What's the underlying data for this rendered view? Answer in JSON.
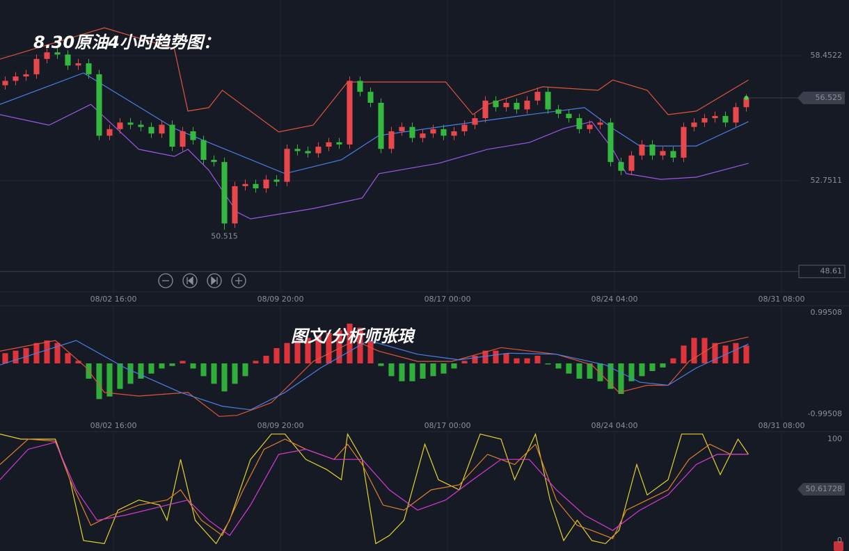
{
  "watermark": "图文/分析师张琅",
  "chart_data": [
    {
      "type": "candlestick",
      "title": "8.30原油4小时趋势图：",
      "xlim": [
        -0.5,
        76.17
      ],
      "xticks": [
        {
          "value": 10.37,
          "label": "08/02 16:00"
        },
        {
          "value": 26.37,
          "label": "08/09 20:00"
        },
        {
          "value": 42.37,
          "label": "08/17 00:00"
        },
        {
          "value": 58.37,
          "label": "08/24 04:00"
        },
        {
          "value": 74.37,
          "label": "08/31 08:00"
        }
      ],
      "ylim": [
        47.683,
        60.986
      ],
      "yticks": [
        58.4522,
        52.7511
      ],
      "reference_line": 48.61,
      "up_color": "#e8474c",
      "down_color": "#35b83f",
      "open": [
        57.1,
        57.3,
        57.5,
        57.6,
        58.3,
        58.6,
        58.5,
        58.0,
        58.1,
        57.6,
        54.8,
        55.1,
        55.4,
        55.3,
        55.2,
        54.9,
        55.3,
        54.3,
        55.0,
        54.6,
        53.7,
        53.6,
        50.8,
        52.5,
        52.6,
        52.4,
        52.8,
        52.7,
        54.2,
        54.1,
        54.0,
        54.3,
        54.5,
        54.4,
        57.3,
        56.8,
        56.3,
        54.2,
        55.0,
        55.2,
        54.7,
        54.9,
        55.1,
        54.8,
        55.0,
        55.3,
        55.6,
        56.4,
        56.1,
        56.3,
        56.0,
        56.4,
        56.8,
        56.0,
        55.8,
        55.6,
        55.1,
        55.3,
        55.4,
        53.6,
        53.2,
        53.9,
        54.4,
        53.9,
        54.1,
        53.8,
        55.2,
        55.4,
        55.6,
        55.7,
        55.4,
        56.1
      ],
      "high": [
        57.5,
        57.7,
        57.8,
        58.5,
        58.8,
        58.8,
        58.7,
        58.3,
        58.3,
        57.8,
        55.3,
        55.6,
        55.6,
        55.5,
        55.4,
        55.5,
        55.5,
        55.2,
        55.2,
        54.8,
        53.9,
        53.8,
        52.7,
        52.8,
        52.8,
        53.0,
        53.0,
        54.4,
        54.4,
        54.3,
        54.5,
        54.7,
        54.7,
        57.5,
        57.5,
        57.0,
        56.5,
        55.2,
        55.4,
        55.4,
        55.1,
        55.3,
        55.3,
        55.2,
        55.5,
        55.8,
        56.6,
        56.6,
        56.5,
        56.5,
        56.6,
        57.0,
        57.0,
        56.2,
        56.0,
        55.8,
        55.5,
        55.6,
        55.6,
        53.8,
        54.1,
        54.6,
        54.6,
        54.3,
        54.3,
        55.4,
        55.6,
        55.8,
        55.9,
        55.9,
        56.3,
        56.7
      ],
      "low": [
        56.9,
        57.1,
        57.3,
        57.4,
        58.1,
        58.3,
        57.8,
        57.8,
        57.4,
        54.6,
        54.6,
        54.9,
        55.1,
        55.0,
        54.7,
        54.7,
        54.1,
        54.1,
        54.4,
        53.5,
        53.4,
        50.515,
        50.6,
        52.3,
        52.2,
        52.2,
        52.5,
        52.5,
        53.9,
        53.8,
        53.8,
        54.1,
        54.2,
        54.2,
        56.6,
        56.1,
        54.0,
        54.0,
        54.8,
        54.5,
        54.5,
        54.7,
        54.6,
        54.6,
        54.8,
        55.1,
        55.4,
        55.9,
        55.9,
        55.8,
        55.8,
        56.2,
        55.8,
        55.6,
        55.4,
        54.9,
        54.9,
        55.1,
        53.4,
        53.0,
        53.0,
        53.7,
        53.7,
        53.7,
        53.6,
        53.6,
        55.0,
        55.2,
        55.4,
        55.2,
        55.2,
        55.9
      ],
      "close": [
        57.3,
        57.5,
        57.6,
        58.3,
        58.6,
        58.5,
        58.0,
        58.1,
        57.6,
        54.8,
        55.1,
        55.4,
        55.3,
        55.2,
        54.9,
        55.3,
        54.3,
        55.0,
        54.6,
        53.7,
        53.6,
        50.8,
        52.5,
        52.6,
        52.4,
        52.8,
        52.7,
        54.2,
        54.1,
        54.0,
        54.3,
        54.5,
        54.4,
        57.3,
        56.8,
        56.3,
        54.2,
        55.0,
        55.2,
        54.7,
        54.9,
        55.1,
        54.8,
        55.0,
        55.3,
        55.6,
        56.4,
        56.1,
        56.3,
        56.0,
        56.4,
        56.8,
        56.0,
        55.8,
        55.6,
        55.1,
        55.3,
        55.4,
        53.6,
        53.2,
        53.9,
        54.4,
        53.9,
        54.1,
        53.8,
        55.2,
        55.4,
        55.6,
        55.7,
        55.4,
        56.1,
        56.525
      ],
      "series": [
        {
          "color": "#e0553a",
          "x": [
            -0.5,
            9.5,
            16.2,
            17.5,
            19.5,
            20.8,
            26.2,
            29.5,
            32.8,
            42.2,
            44.8,
            46.2,
            51.5,
            56.8,
            58.2,
            61.5,
            63.5,
            66.2,
            71.2
          ],
          "values": [
            58.29,
            59.72,
            58.77,
            55.92,
            56.08,
            56.87,
            54.97,
            55.28,
            57.25,
            57.25,
            55.76,
            56.23,
            57.03,
            56.87,
            57.34,
            56.87,
            55.76,
            55.92,
            57.34
          ]
        },
        {
          "color": "#4a7fe6",
          "x": [
            -0.5,
            7.5,
            16.2,
            26.8,
            32.2,
            35.8,
            42.8,
            50.2,
            55.5,
            58.2,
            60.8,
            66.2,
            71.2
          ],
          "values": [
            56.23,
            57.66,
            55.13,
            53.07,
            53.7,
            54.81,
            55.28,
            55.76,
            56.08,
            55.13,
            54.33,
            54.33,
            55.44
          ]
        },
        {
          "color": "#9b59e6",
          "x": [
            -0.5,
            4.2,
            8.2,
            12.8,
            16.2,
            17.5,
            19.5,
            22.2,
            23.5,
            29.5,
            34.2,
            35.8,
            41.5,
            46.2,
            50.2,
            53.5,
            56.2,
            58.2,
            59.5,
            62.8,
            66.2,
            71.2
          ],
          "values": [
            55.76,
            55.28,
            56.23,
            54.18,
            53.86,
            54.18,
            53.23,
            51.32,
            51.01,
            51.48,
            51.96,
            53.07,
            53.54,
            54.18,
            54.49,
            55.13,
            55.44,
            54.18,
            53.07,
            52.81,
            52.91,
            53.54
          ]
        }
      ]
    },
    {
      "type": "macd",
      "ylim": [
        -0.99508,
        0.99508
      ],
      "yticks": [
        0.99508,
        -0.99508
      ],
      "pos_color": "#e0343c",
      "neg_color": "#2fae3a",
      "values": [
        0.2,
        0.25,
        0.3,
        0.4,
        0.45,
        0.4,
        0.2,
        0.05,
        -0.3,
        -0.7,
        -0.65,
        -0.5,
        -0.4,
        -0.3,
        -0.2,
        -0.1,
        -0.05,
        0.05,
        -0.1,
        -0.25,
        -0.4,
        -0.55,
        -0.4,
        -0.25,
        0.05,
        0.15,
        0.3,
        0.4,
        0.45,
        0.5,
        0.55,
        0.6,
        0.65,
        0.78,
        0.7,
        0.45,
        -0.05,
        -0.25,
        -0.35,
        -0.35,
        -0.3,
        -0.25,
        -0.2,
        -0.1,
        0.05,
        0.15,
        0.25,
        0.25,
        0.2,
        0.1,
        0.1,
        0.15,
        -0.02,
        -0.1,
        -0.2,
        -0.3,
        -0.3,
        -0.35,
        -0.5,
        -0.6,
        -0.35,
        -0.25,
        -0.15,
        -0.08,
        0.1,
        0.35,
        0.5,
        0.5,
        0.4,
        0.35,
        0.4,
        0.35
      ],
      "series": [
        {
          "color": "#e0553a",
          "x": [
            -0.5,
            4.8,
            7.8,
            9.5,
            12.8,
            17.5,
            20.5,
            22.2,
            25.5,
            29.5,
            33.5,
            35.8,
            39.5,
            42.8,
            47.5,
            52.8,
            56.2,
            58.8,
            61.5,
            63.5,
            65.5,
            68.2,
            71.2
          ],
          "values": [
            0.24,
            0.45,
            -0.09,
            -0.57,
            -0.64,
            -0.57,
            -1.04,
            -1.02,
            -0.77,
            0.04,
            0.45,
            0.24,
            0.04,
            0.04,
            0.31,
            0.18,
            -0.03,
            -0.57,
            -0.43,
            -0.43,
            0.04,
            0.38,
            0.52
          ]
        },
        {
          "color": "#4a7fe6",
          "x": [
            -0.5,
            6.8,
            11.5,
            16.8,
            20.8,
            23.5,
            26.8,
            30.2,
            34.8,
            39.5,
            43.5,
            48.2,
            52.8,
            57.5,
            60.8,
            63.5,
            66.2,
            71.2
          ],
          "values": [
            -0.03,
            0.45,
            -0.09,
            -0.57,
            -0.84,
            -0.91,
            -0.57,
            -0.09,
            0.45,
            0.18,
            0.07,
            0.2,
            0.18,
            -0.03,
            -0.37,
            -0.43,
            -0.09,
            0.38
          ]
        }
      ]
    },
    {
      "type": "kdj",
      "ylim": [
        0,
        100
      ],
      "yticks": [
        100,
        0
      ],
      "current_value": 50.61728,
      "series": [
        {
          "color": "#e6d22a",
          "x": [
            -0.5,
            1.5,
            4.8,
            6.2,
            7.5,
            9.5,
            10.8,
            12.8,
            14.8,
            15.5,
            16.8,
            18.2,
            20.2,
            21.5,
            23.5,
            25.5,
            26.8,
            28.8,
            30.8,
            32.2,
            32.8,
            34.2,
            35.5,
            36.8,
            38.2,
            40.2,
            41.5,
            43.5,
            45.5,
            47.5,
            48.8,
            50.8,
            52.2,
            53.5,
            54.8,
            56.2,
            57.5,
            58.8,
            60.5,
            61.5,
            63.5,
            64.8,
            66.8,
            68.5,
            70.2,
            71.2
          ],
          "values": [
            105,
            100,
            100,
            60,
            0,
            -3,
            30,
            40,
            35,
            20,
            80,
            20,
            -3,
            20,
            80,
            105,
            105,
            80,
            70,
            60,
            105,
            80,
            -3,
            5,
            20,
            95,
            60,
            50,
            105,
            100,
            60,
            105,
            40,
            0,
            20,
            0,
            -3,
            10,
            75,
            45,
            60,
            105,
            105,
            65,
            100,
            85
          ]
        },
        {
          "color": "#e0812a",
          "x": [
            -0.5,
            2.2,
            4.8,
            6.2,
            8.2,
            10.2,
            12.8,
            15.5,
            16.8,
            18.8,
            20.8,
            22.8,
            24.8,
            26.8,
            28.8,
            31.5,
            32.8,
            34.2,
            36.2,
            38.2,
            40.8,
            43.5,
            46.2,
            48.8,
            50.8,
            52.8,
            54.8,
            56.2,
            58.2,
            59.5,
            61.5,
            63.5,
            65.5,
            67.5,
            69.5,
            71.2
          ],
          "values": [
            75,
            100,
            98,
            60,
            15,
            25,
            35,
            40,
            50,
            20,
            5,
            50,
            90,
            100,
            90,
            80,
            95,
            75,
            35,
            30,
            50,
            55,
            85,
            75,
            95,
            40,
            15,
            10,
            2,
            30,
            40,
            50,
            80,
            95,
            85,
            85
          ]
        },
        {
          "color": "#d63bd6",
          "x": [
            -0.5,
            2.2,
            4.8,
            6.8,
            8.8,
            11.5,
            15.5,
            17.5,
            19.5,
            21.5,
            23.5,
            26.2,
            28.8,
            31.5,
            34.2,
            36.8,
            39.5,
            42.2,
            44.8,
            47.5,
            50.2,
            52.8,
            55.5,
            58.2,
            60.8,
            63.5,
            66.2,
            68.2,
            71.2
          ],
          "values": [
            60,
            90,
            97,
            50,
            20,
            25,
            35,
            40,
            20,
            5,
            35,
            85,
            90,
            80,
            80,
            50,
            30,
            40,
            60,
            80,
            80,
            50,
            25,
            10,
            30,
            45,
            75,
            85,
            85
          ]
        }
      ]
    }
  ]
}
